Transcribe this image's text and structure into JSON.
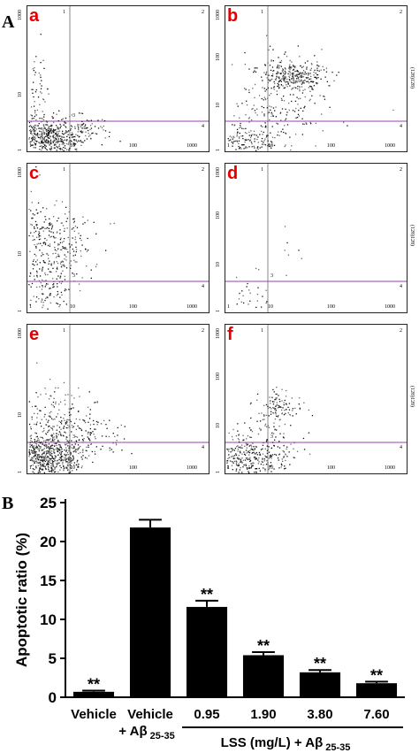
{
  "figure": {
    "panel_a_label": "A",
    "panel_b_label": "B"
  },
  "flow_panels": [
    {
      "letter": "a",
      "y_ticks": [
        "1000",
        "10",
        "1"
      ],
      "x_ticks": [
        "1",
        "10",
        "100",
        "1000"
      ],
      "quadrants": [
        "1",
        "2",
        "3",
        "4"
      ],
      "side_label": "",
      "density": "low-left-heavy"
    },
    {
      "letter": "b",
      "y_ticks": [
        "1000",
        "100",
        "10",
        "1"
      ],
      "x_ticks": [
        "1",
        "10",
        "100",
        "1000"
      ],
      "quadrants": [
        "1",
        "2",
        "3",
        "4"
      ],
      "side_label": "(128)128)",
      "density": "upper-right-cluster"
    },
    {
      "letter": "c",
      "y_ticks": [
        "1000",
        "10",
        "1"
      ],
      "x_ticks": [
        "1",
        "10",
        "100",
        "1000"
      ],
      "quadrants": [
        "1",
        "2",
        "3",
        "4"
      ],
      "side_label": "",
      "density": "left-spread"
    },
    {
      "letter": "d",
      "y_ticks": [
        "1000",
        "100",
        "10",
        "1"
      ],
      "x_ticks": [
        "1",
        "10",
        "100",
        "1000"
      ],
      "quadrants": [
        "1",
        "2",
        "3",
        "4"
      ],
      "side_label": "(128)128)",
      "density": "sparse"
    },
    {
      "letter": "e",
      "y_ticks": [
        "1000",
        "10",
        "1"
      ],
      "x_ticks": [
        "1",
        "10",
        "100",
        "1000"
      ],
      "quadrants": [
        "1",
        "2",
        "3",
        "4"
      ],
      "side_label": "",
      "density": "dense-left"
    },
    {
      "letter": "f",
      "y_ticks": [
        "1000",
        "100",
        "10",
        "1"
      ],
      "x_ticks": [
        "1",
        "10",
        "100",
        "1000"
      ],
      "quadrants": [
        "1",
        "2",
        "3",
        "4"
      ],
      "side_label": "(128)128)",
      "density": "left-plus-cluster"
    }
  ],
  "chart_data": {
    "type": "bar",
    "title": "",
    "ylabel": "Apoptotic ratio (%)",
    "xlabel": "",
    "ylim": [
      0,
      25
    ],
    "y_ticks": [
      0,
      5,
      10,
      15,
      20,
      25
    ],
    "categories": [
      "Vehicle",
      "Vehicle + Aβ 25-35",
      "0.95",
      "1.90",
      "3.80",
      "7.60"
    ],
    "category_lines": [
      {
        "line1": "Vehicle",
        "line2": "",
        "sub": ""
      },
      {
        "line1": "Vehicle",
        "line2": "+ Aβ",
        "sub": "25-35"
      },
      {
        "line1": "0.95",
        "line2": "",
        "sub": ""
      },
      {
        "line1": "1.90",
        "line2": "",
        "sub": ""
      },
      {
        "line1": "3.80",
        "line2": "",
        "sub": ""
      },
      {
        "line1": "7.60",
        "line2": "",
        "sub": ""
      }
    ],
    "values": [
      0.7,
      21.8,
      11.6,
      5.4,
      3.2,
      1.8
    ],
    "errors": [
      0.15,
      1.0,
      0.8,
      0.4,
      0.3,
      0.2
    ],
    "significance": [
      "**",
      "",
      "**",
      "**",
      "**",
      "**"
    ],
    "group_label": "LSS (mg/L) + Aβ",
    "group_label_sub": "25-35",
    "bar_color": "#000000"
  }
}
